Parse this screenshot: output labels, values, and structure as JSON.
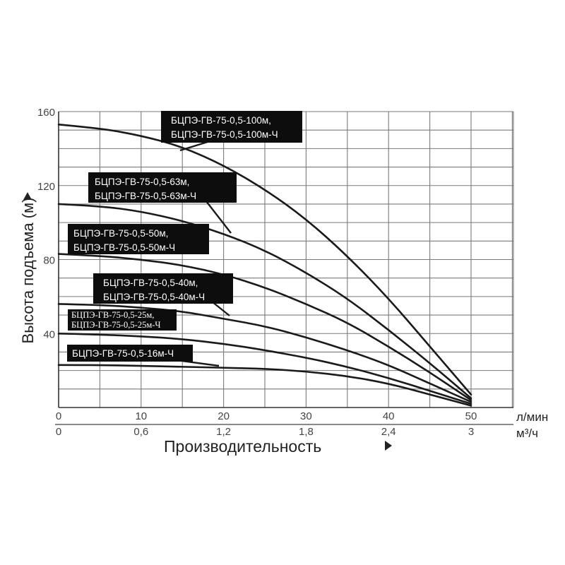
{
  "chart_data": {
    "type": "line",
    "ylabel": "Высота подъема (м)",
    "xlabel": "Производительность",
    "x_unit": "л/мин",
    "x2_unit": "м³/ч",
    "xlim": [
      0,
      50
    ],
    "ylim": [
      0,
      160
    ],
    "x_ticks": [
      "0",
      "10",
      "20",
      "30",
      "40",
      "50"
    ],
    "x2_ticks": [
      "0",
      "0,6",
      "1,2",
      "1,8",
      "2,4",
      "3"
    ],
    "y_ticks": [
      "40",
      "80",
      "120",
      "160"
    ],
    "grid": true,
    "series": [
      {
        "name": "БЦПЭ-ГВ-75-0,5-100м, БЦПЭ-ГВ-75-0,5-100м-Ч",
        "label_lines": [
          "БЦПЭ-ГВ-75-0,5-100м,",
          "БЦПЭ-ГВ-75-0,5-100м-Ч"
        ],
        "x": [
          0,
          5,
          10,
          15,
          20,
          25,
          30,
          35,
          40,
          45,
          50
        ],
        "y": [
          153,
          151,
          147,
          141,
          131,
          118,
          102,
          82,
          59,
          33,
          7
        ]
      },
      {
        "name": "БЦПЭ-ГВ-75-0,5-63м, БЦПЭ-ГВ-75-0,5-63м-Ч",
        "label_lines": [
          "БЦПЭ-ГВ-75-0,5-63м,",
          "БЦПЭ-ГВ-75-0,5-63м-Ч"
        ],
        "x": [
          0,
          5,
          10,
          15,
          20,
          25,
          30,
          35,
          40,
          45,
          50
        ],
        "y": [
          110,
          109,
          106,
          101,
          94,
          85,
          73,
          59,
          42,
          24,
          5
        ]
      },
      {
        "name": "БЦПЭ-ГВ-75-0,5-50м, БЦПЭ-ГВ-75-0,5-50м-Ч",
        "label_lines": [
          "БЦПЭ-ГВ-75-0,5-50м,",
          "БЦПЭ-ГВ-75-0,5-50м-Ч"
        ],
        "x": [
          0,
          5,
          10,
          15,
          20,
          25,
          30,
          35,
          40,
          45,
          50
        ],
        "y": [
          83,
          82,
          80,
          77,
          72,
          65,
          56,
          46,
          33,
          19,
          4
        ]
      },
      {
        "name": "БЦПЭ-ГВ-75-0,5-40м, БЦПЭ-ГВ-75-0,5-40м-Ч",
        "label_lines": [
          "БЦПЭ-ГВ-75-0,5-40м,",
          "БЦПЭ-ГВ-75-0,5-40м-Ч"
        ],
        "x": [
          0,
          5,
          10,
          15,
          20,
          25,
          30,
          35,
          40,
          45,
          50
        ],
        "y": [
          56,
          55.5,
          54,
          52,
          48,
          44,
          38,
          31,
          23,
          13,
          3
        ]
      },
      {
        "name": "БЦПЭ-ГВ-75-0,5-25м, БЦПЭ-ГВ-75-0,5-25м-Ч",
        "label_lines": [
          "БЦПЭ-ГВ-75-0,5-25м,",
          "БЦПЭ-ГВ-75-0,5-25м-Ч"
        ],
        "x": [
          0,
          5,
          10,
          15,
          20,
          25,
          30,
          35,
          40,
          45,
          50
        ],
        "y": [
          40,
          39.5,
          38.5,
          37,
          34.5,
          31,
          27,
          22,
          16,
          9,
          2
        ]
      },
      {
        "name": "БЦПЭ-ГВ-75-0,5-16м-Ч",
        "label_lines": [
          "БЦПЭ-ГВ-75-0,5-16м-Ч"
        ],
        "x": [
          0,
          5,
          10,
          15,
          20,
          25,
          30,
          35,
          40,
          45,
          50
        ],
        "y": [
          23,
          23,
          22.5,
          22,
          21.5,
          21,
          19.5,
          17,
          13,
          7,
          1
        ]
      }
    ]
  }
}
